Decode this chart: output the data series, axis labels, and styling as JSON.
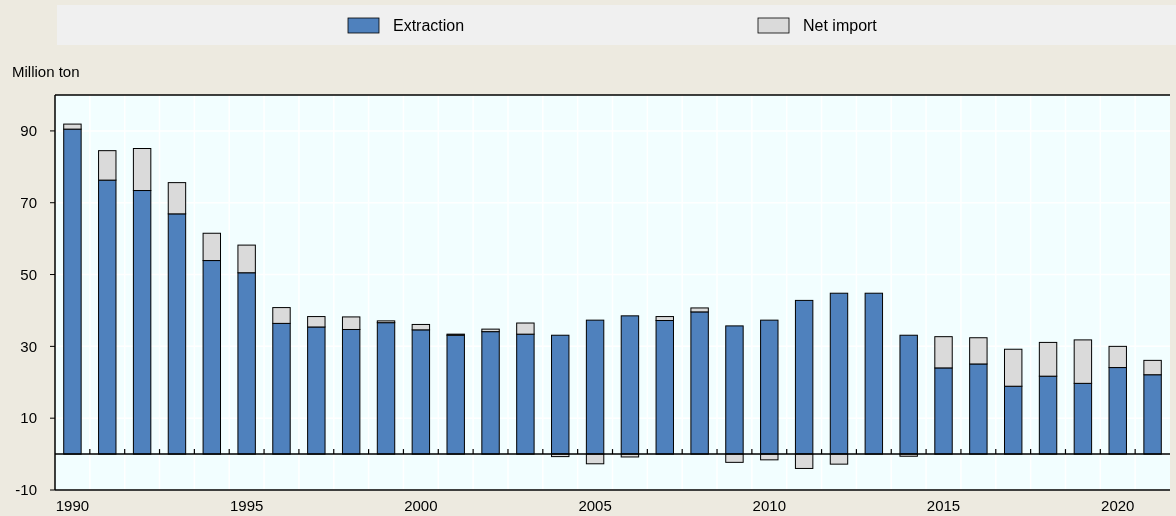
{
  "chart_data": {
    "type": "bar",
    "ylabel": "Million ton",
    "stacked": true,
    "legend": "top",
    "grid": true,
    "categories": [
      "1990",
      null,
      null,
      null,
      null,
      "1995",
      null,
      null,
      null,
      null,
      "2000",
      null,
      null,
      null,
      null,
      "2005",
      null,
      null,
      null,
      null,
      "2010",
      null,
      null,
      null,
      null,
      "2015",
      null,
      null,
      null,
      null,
      "2020",
      null
    ],
    "series": [
      {
        "name": "Extraction",
        "color": "#4f81bd",
        "values": [
          90.5,
          76.3,
          73.4,
          66.9,
          53.9,
          50.5,
          36.4,
          35.4,
          34.7,
          36.6,
          34.6,
          33.1,
          34.1,
          33.4,
          33.1,
          37.3,
          38.5,
          37.2,
          39.6,
          35.7,
          37.3,
          42.8,
          44.8,
          44.8,
          33.1,
          24.0,
          25.1,
          18.9,
          21.7,
          19.7,
          24.1,
          22.1
        ]
      },
      {
        "name": "Net import",
        "color": "#dadada",
        "values": [
          1.4,
          8.2,
          11.7,
          8.7,
          7.6,
          7.7,
          4.4,
          2.9,
          3.5,
          0.5,
          1.5,
          0.3,
          0.7,
          3.1,
          -0.7,
          -2.7,
          -0.8,
          1.1,
          1.1,
          -2.3,
          -1.6,
          -4.0,
          -2.8,
          0,
          -0.6,
          8.7,
          7.3,
          10.3,
          9.4,
          12.1,
          5.9,
          4.0
        ]
      }
    ],
    "ylim": [
      -10,
      100
    ],
    "yticks": [
      -10,
      10,
      30,
      50,
      70,
      90
    ]
  }
}
